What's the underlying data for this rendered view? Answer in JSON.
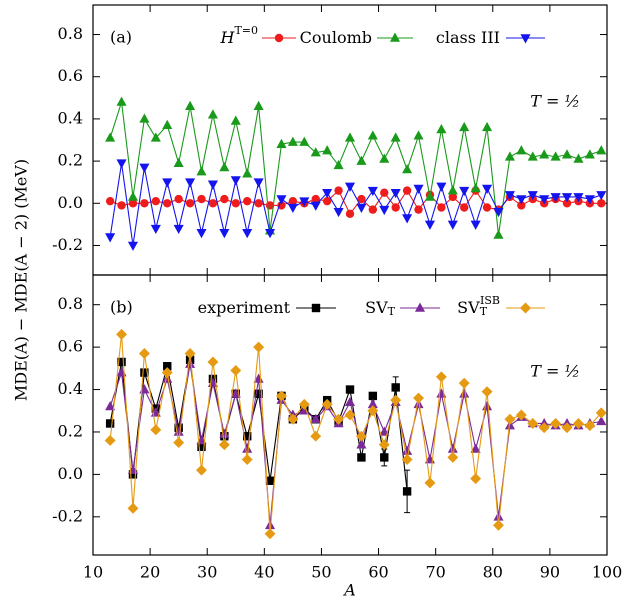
{
  "chart_data": [
    {
      "type": "line",
      "panel_label": "(a)",
      "annotation": "T = ½",
      "ylabel": "MDE(A) − MDE(A − 2) (MeV)",
      "x": [
        13,
        15,
        17,
        19,
        21,
        23,
        25,
        27,
        29,
        31,
        33,
        35,
        37,
        39,
        41,
        43,
        45,
        47,
        49,
        51,
        53,
        55,
        57,
        59,
        61,
        63,
        65,
        67,
        69,
        71,
        73,
        75,
        77,
        79,
        81,
        83,
        85,
        87,
        89,
        91,
        93,
        95,
        97,
        99
      ],
      "xlim": [
        10,
        100
      ],
      "xticks": [
        10,
        20,
        30,
        40,
        50,
        60,
        70,
        80,
        90,
        100
      ],
      "show_xtick_labels": false,
      "ylim": [
        -0.34,
        0.94
      ],
      "yticks": [
        -0.2,
        {
          "value": 0,
          "label": "0.0"
        },
        0.2,
        0.4,
        0.6,
        0.8
      ],
      "series": [
        {
          "name": "H",
          "name_sup": "T=0",
          "color": "#ee1c1c",
          "marker": "circle",
          "values": [
            0.01,
            -0.01,
            0.0,
            0.0,
            0.01,
            0.0,
            0.02,
            0.0,
            0.02,
            0.0,
            0.02,
            0.0,
            0.01,
            0.0,
            -0.01,
            -0.01,
            0.01,
            0.0,
            0.02,
            0.01,
            0.06,
            -0.05,
            0.02,
            -0.03,
            0.05,
            -0.02,
            0.06,
            -0.03,
            0.04,
            -0.02,
            0.03,
            -0.02,
            0.06,
            -0.02,
            -0.03,
            0.03,
            -0.01,
            0.02,
            0.0,
            0.02,
            0.0,
            0.01,
            0.0,
            0.0
          ]
        },
        {
          "name": "Coulomb",
          "color": "#1a9a1a",
          "marker": "triangle-up",
          "values": [
            0.31,
            0.48,
            0.03,
            0.4,
            0.31,
            0.37,
            0.19,
            0.46,
            0.15,
            0.42,
            0.17,
            0.39,
            0.14,
            0.46,
            -0.13,
            0.28,
            0.29,
            0.29,
            0.24,
            0.25,
            0.18,
            0.31,
            0.2,
            0.32,
            0.21,
            0.31,
            0.16,
            0.32,
            0.03,
            0.35,
            0.06,
            0.36,
            0.07,
            0.36,
            -0.15,
            0.22,
            0.25,
            0.22,
            0.23,
            0.22,
            0.23,
            0.21,
            0.23,
            0.25
          ]
        },
        {
          "name": "class III",
          "color": "#1414ee",
          "marker": "triangle-down",
          "values": [
            -0.16,
            0.19,
            -0.2,
            0.17,
            -0.12,
            0.1,
            -0.12,
            0.1,
            -0.14,
            0.09,
            -0.14,
            0.11,
            -0.14,
            0.1,
            -0.14,
            0.02,
            -0.02,
            0.01,
            -0.01,
            0.05,
            -0.04,
            0.08,
            -0.02,
            0.06,
            -0.03,
            0.05,
            -0.07,
            0.07,
            -0.1,
            0.08,
            -0.1,
            0.06,
            -0.1,
            0.07,
            -0.04,
            0.04,
            0.02,
            0.04,
            0.02,
            0.03,
            0.03,
            0.03,
            0.02,
            0.04
          ]
        }
      ]
    },
    {
      "type": "line",
      "panel_label": "(b)",
      "annotation": "T = ½",
      "xlabel": "A",
      "x": [
        13,
        15,
        17,
        19,
        21,
        23,
        25,
        27,
        29,
        31,
        33,
        35,
        37,
        39,
        41,
        43,
        45,
        47,
        49,
        51,
        53,
        55,
        57,
        59,
        61,
        63,
        65,
        67,
        69,
        71,
        73,
        75,
        77,
        79,
        81,
        83,
        85,
        87,
        89,
        91,
        93,
        95,
        97,
        99
      ],
      "xlim": [
        10,
        100
      ],
      "xticks": [
        10,
        20,
        30,
        40,
        50,
        60,
        70,
        80,
        90,
        100
      ],
      "show_xtick_labels": true,
      "ylim": [
        -0.38,
        0.94
      ],
      "yticks": [
        -0.2,
        {
          "value": 0,
          "label": "0.0"
        },
        0.2,
        0.4,
        0.6,
        0.8
      ],
      "series": [
        {
          "name": "experiment",
          "color": "#000000",
          "marker": "square",
          "values": [
            0.24,
            0.53,
            0.0,
            0.48,
            0.31,
            0.51,
            0.22,
            0.54,
            0.13,
            0.45,
            0.18,
            0.38,
            0.18,
            0.38,
            -0.03,
            0.37,
            0.26,
            0.31,
            0.26,
            0.35,
            0.25,
            0.4,
            0.08,
            0.37,
            0.08,
            0.41,
            -0.08,
            null,
            null,
            null,
            null,
            null,
            null,
            null,
            null,
            null,
            null,
            null,
            null,
            null,
            null,
            null,
            null,
            null
          ],
          "errors": [
            null,
            null,
            null,
            null,
            null,
            null,
            null,
            null,
            null,
            null,
            null,
            null,
            null,
            null,
            null,
            null,
            null,
            null,
            null,
            null,
            null,
            null,
            null,
            null,
            0.04,
            0.05,
            0.1,
            null,
            null,
            null,
            null,
            null,
            null,
            null,
            null,
            null,
            null,
            null,
            null,
            null,
            null,
            null,
            null,
            null
          ]
        },
        {
          "name": "SV",
          "name_sub": "T",
          "color": "#7b2a9a",
          "marker": "triangle-up",
          "values": [
            0.32,
            0.48,
            0.02,
            0.4,
            0.29,
            0.45,
            0.2,
            0.52,
            0.16,
            0.43,
            0.19,
            0.38,
            0.12,
            0.45,
            -0.24,
            0.35,
            0.28,
            0.3,
            0.26,
            0.32,
            0.24,
            0.34,
            0.14,
            0.33,
            0.2,
            0.34,
            0.11,
            0.33,
            0.07,
            0.38,
            0.12,
            0.38,
            0.12,
            0.32,
            -0.2,
            0.23,
            0.27,
            0.24,
            0.24,
            0.23,
            0.24,
            0.23,
            0.24,
            0.25
          ]
        },
        {
          "name": "SV",
          "name_sub": "T",
          "name_sup": "ISB",
          "color": "#e69a12",
          "marker": "diamond",
          "values": [
            0.16,
            0.66,
            -0.16,
            0.57,
            0.21,
            0.48,
            0.15,
            0.57,
            0.02,
            0.53,
            0.14,
            0.49,
            0.07,
            0.6,
            -0.28,
            0.37,
            0.26,
            0.33,
            0.18,
            0.33,
            0.26,
            0.28,
            0.18,
            0.3,
            0.14,
            0.35,
            0.07,
            0.36,
            -0.04,
            0.46,
            0.08,
            0.43,
            -0.02,
            0.39,
            -0.24,
            0.26,
            0.28,
            0.24,
            0.22,
            0.24,
            0.22,
            0.24,
            0.23,
            0.29
          ]
        }
      ]
    }
  ]
}
